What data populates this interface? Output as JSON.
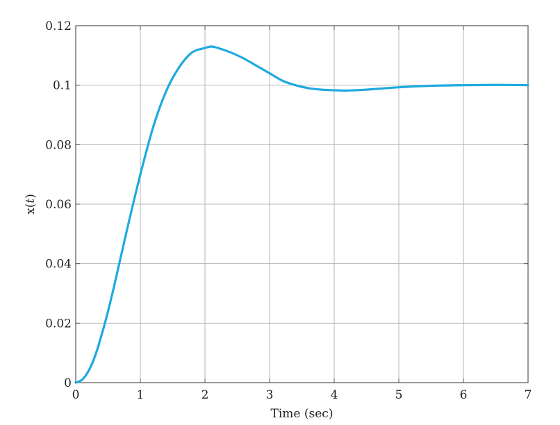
{
  "chart_data": {
    "type": "line",
    "title": "",
    "xlabel": "Time (sec)",
    "ylabel": "x(t)",
    "ylabel_parts": {
      "name": "x(",
      "var": "t",
      "close": ")"
    },
    "xlim": [
      0,
      7
    ],
    "ylim": [
      0,
      0.12
    ],
    "xticks": [
      0,
      1,
      2,
      3,
      4,
      5,
      6,
      7
    ],
    "yticks": [
      0,
      0.02,
      0.04,
      0.06,
      0.08,
      0.1,
      0.12
    ],
    "xtick_labels": [
      "0",
      "1",
      "2",
      "3",
      "4",
      "5",
      "6",
      "7"
    ],
    "ytick_labels": [
      "0",
      "0.02",
      "0.04",
      "0.06",
      "0.08",
      "0.1",
      "0.12"
    ],
    "grid": true,
    "legend": "none",
    "line_color": "#1eaadf",
    "series": [
      {
        "x": [
          0,
          0.1,
          0.2,
          0.3,
          0.4,
          0.5,
          0.6,
          0.8,
          1.0,
          1.2,
          1.4,
          1.6,
          1.8,
          2.0,
          2.1,
          2.2,
          2.4,
          2.6,
          2.8,
          3.0,
          3.2,
          3.4,
          3.6,
          3.8,
          4.0,
          4.2,
          4.5,
          5.0,
          5.5,
          6.0,
          6.5,
          7.0
        ],
        "values": [
          0,
          0.001,
          0.004,
          0.009,
          0.016,
          0.024,
          0.033,
          0.052,
          0.07,
          0.086,
          0.098,
          0.106,
          0.111,
          0.1125,
          0.113,
          0.1125,
          0.111,
          0.109,
          0.1065,
          0.104,
          0.1015,
          0.1,
          0.099,
          0.0985,
          0.0983,
          0.0982,
          0.0985,
          0.0993,
          0.0998,
          0.1,
          0.1001,
          0.1
        ]
      }
    ]
  }
}
